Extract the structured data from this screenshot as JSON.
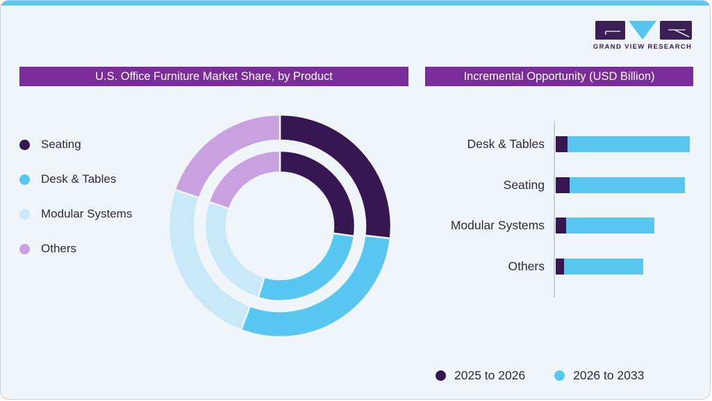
{
  "brand": {
    "name": "GRAND VIEW RESEARCH"
  },
  "theme": {
    "top_strip": "#58C8F2",
    "card_bg": "#EFF5F9",
    "card_border": "#C9D1D8",
    "header_bg": "#7B2C9B",
    "header_text": "#FFFFFF",
    "text": "#2E2840",
    "axis": "#C7CED6",
    "logo_dark": "#3A1E55",
    "logo_blue": "#56C6EE",
    "series_dark_purple": "#371751",
    "series_sky_blue": "#57C6F1",
    "series_pale_blue": "#C9E9F8",
    "series_lavender": "#C9A1E0"
  },
  "left_panel": {
    "title": "U.S. Office Furniture Market Share, by Product",
    "legend": [
      {
        "label": "Seating",
        "color": "#371751"
      },
      {
        "label": "Desk & Tables",
        "color": "#57C6F1"
      },
      {
        "label": "Modular Systems",
        "color": "#C9E9F8"
      },
      {
        "label": "Others",
        "color": "#C9A1E0"
      }
    ]
  },
  "right_panel": {
    "title": "Incremental Opportunity (USD Billion)",
    "legend": [
      {
        "label": "2025 to 2026",
        "color": "#371751"
      },
      {
        "label": "2026 to 2033",
        "color": "#57C6F1"
      }
    ]
  },
  "chart_data": [
    {
      "type": "pie",
      "variant": "double-ring-donut",
      "title": "U.S. Office Furniture Market Share, by Product",
      "categories": [
        "Seating",
        "Desk & Tables",
        "Modular Systems",
        "Others"
      ],
      "colors": [
        "#371751",
        "#57C6F1",
        "#C9E9F8",
        "#C9A1E0"
      ],
      "start_angle_deg": 0,
      "rings": [
        {
          "name": "outer",
          "values_pct": [
            26.8,
            28.9,
            24.6,
            19.7
          ]
        },
        {
          "name": "inner",
          "values_pct": [
            27.2,
            27.5,
            25.5,
            19.8
          ]
        }
      ],
      "legend_position": "left",
      "data_labels": false
    },
    {
      "type": "bar",
      "orientation": "horizontal",
      "stacked": true,
      "title": "Incremental Opportunity (USD Billion)",
      "categories": [
        "Desk & Tables",
        "Seating",
        "Modular Systems",
        "Others"
      ],
      "series": [
        {
          "name": "2025 to 2026",
          "color": "#371751",
          "values": [
            9.0,
            10.3,
            7.6,
            6.1
          ]
        },
        {
          "name": "2026 to 2033",
          "color": "#57C6F1",
          "values": [
            91.0,
            86.0,
            65.7,
            59.3
          ]
        }
      ],
      "xlim": [
        0,
        107
      ],
      "grid": false,
      "axis_labels_shown": false,
      "legend_position": "bottom-right",
      "data_labels": false
    }
  ]
}
